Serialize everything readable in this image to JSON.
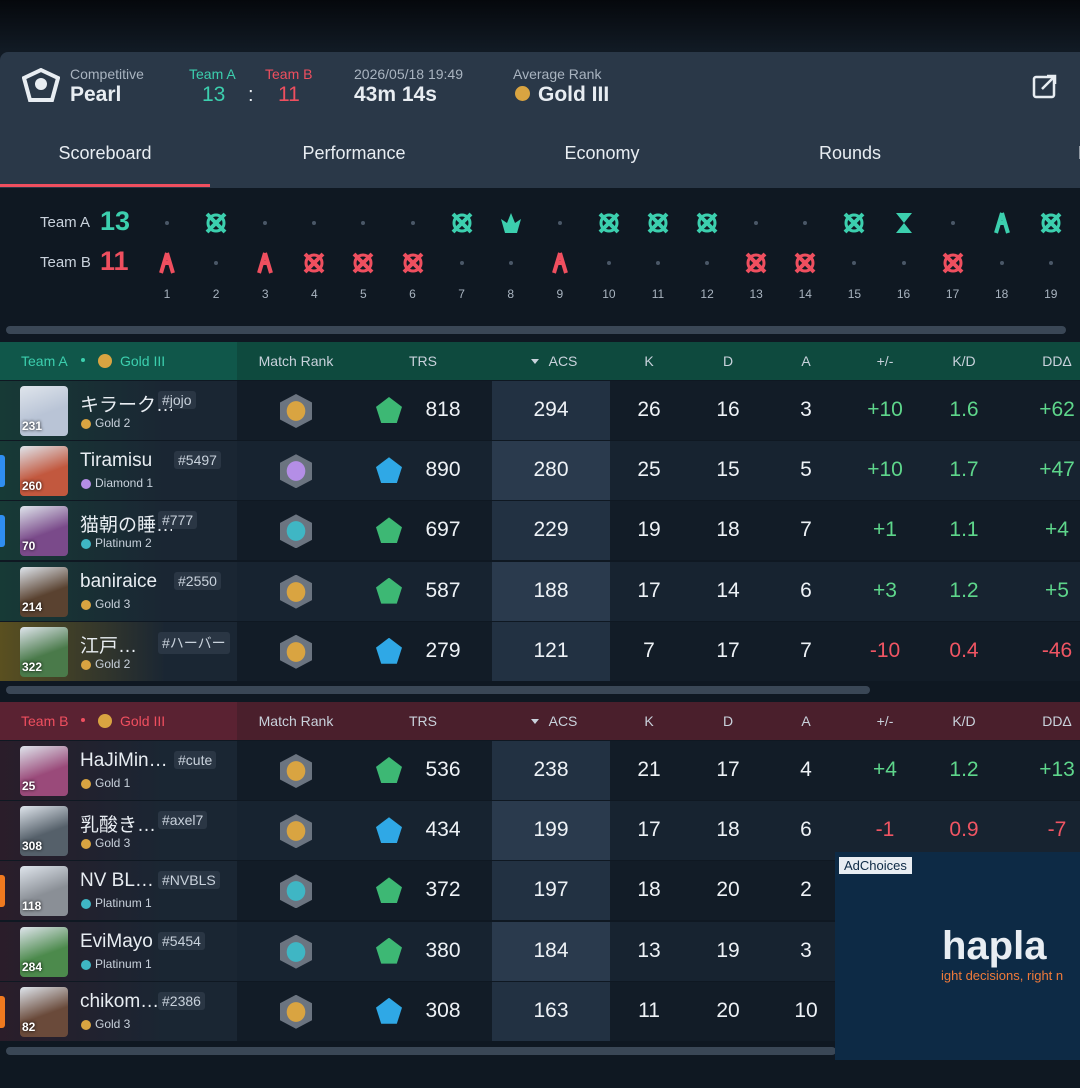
{
  "header": {
    "mode": "Competitive",
    "map": "Pearl",
    "team_a": "Team A",
    "team_a_score": 13,
    "score_separator": ":",
    "team_b": "Team B",
    "team_b_score": 11,
    "date": "2026/05/18 19:49",
    "duration": "43m 14s",
    "average_rank_label": "Average Rank",
    "average_rank": "Gold III"
  },
  "tabs": [
    "Scoreboard",
    "Performance",
    "Economy",
    "Rounds",
    "D"
  ],
  "rounds": {
    "team_a": "Team A",
    "team_a_score": 13,
    "team_b": "Team B",
    "team_b_score": 11,
    "numbers": [
      1,
      2,
      3,
      4,
      5,
      6,
      7,
      8,
      9,
      10,
      11,
      12,
      13,
      14,
      15,
      16,
      17,
      18,
      19
    ]
  },
  "columns": {
    "match_rank": "Match Rank",
    "trs": "TRS",
    "acs": "ACS",
    "k": "K",
    "d": "D",
    "a": "A",
    "plus_minus": "+/-",
    "kd": "K/D",
    "dd": "DDΔ"
  },
  "teams": [
    {
      "name": "Team A",
      "rank": "Gold III",
      "players": [
        {
          "level": 231,
          "name": "キラーク…",
          "tag": "#jojo",
          "rank": "Gold 2",
          "trs": 818,
          "acs": 294,
          "k": 26,
          "d": 16,
          "a": 3,
          "plus_minus": "+10",
          "kd": 1.6,
          "dd": "+62"
        },
        {
          "level": 260,
          "name": "Tiramisu",
          "tag": "#5497",
          "rank": "Diamond 1",
          "trs": 890,
          "acs": 280,
          "k": 25,
          "d": 15,
          "a": 5,
          "plus_minus": "+10",
          "kd": 1.7,
          "dd": "+47"
        },
        {
          "level": 70,
          "name": "猫朝の睡…",
          "tag": "#777",
          "rank": "Platinum 2",
          "trs": 697,
          "acs": 229,
          "k": 19,
          "d": 18,
          "a": 7,
          "plus_minus": "+1",
          "kd": 1.1,
          "dd": "+4"
        },
        {
          "level": 214,
          "name": "baniraice",
          "tag": "#2550",
          "rank": "Gold 3",
          "trs": 587,
          "acs": 188,
          "k": 17,
          "d": 14,
          "a": 6,
          "plus_minus": "+3",
          "kd": 1.2,
          "dd": "+5"
        },
        {
          "level": 322,
          "name": "江戸…",
          "tag": "#ハーバー",
          "rank": "Gold 2",
          "trs": 279,
          "acs": 121,
          "k": 7,
          "d": 17,
          "a": 7,
          "plus_minus": "-10",
          "kd": 0.4,
          "dd": "-46"
        }
      ]
    },
    {
      "name": "Team B",
      "rank": "Gold III",
      "players": [
        {
          "level": 25,
          "name": "HaJiMin…",
          "tag": "#cute",
          "rank": "Gold 1",
          "trs": 536,
          "acs": 238,
          "k": 21,
          "d": 17,
          "a": 4,
          "plus_minus": "+4",
          "kd": 1.2,
          "dd": "+13"
        },
        {
          "level": 308,
          "name": "乳酸き…",
          "tag": "#axel7",
          "rank": "Gold 3",
          "trs": 434,
          "acs": 199,
          "k": 17,
          "d": 18,
          "a": 6,
          "plus_minus": "-1",
          "kd": 0.9,
          "dd": "-7"
        },
        {
          "level": 118,
          "name": "NV BL…",
          "tag": "#NVBLS",
          "rank": "Platinum 1",
          "trs": 372,
          "acs": 197,
          "k": 18,
          "d": 20,
          "a": 2
        },
        {
          "level": 284,
          "name": "EviMayo",
          "tag": "#5454",
          "rank": "Platinum 1",
          "trs": 380,
          "acs": 184,
          "k": 13,
          "d": 19,
          "a": 3
        },
        {
          "level": 82,
          "name": "chikom…",
          "tag": "#2386",
          "rank": "Gold 3",
          "trs": 308,
          "acs": 163,
          "k": 11,
          "d": 20,
          "a": 10
        }
      ]
    }
  ],
  "ad": {
    "choices": "AdChoices",
    "brand": "hapla",
    "tagline": "ight decisions, right n"
  }
}
